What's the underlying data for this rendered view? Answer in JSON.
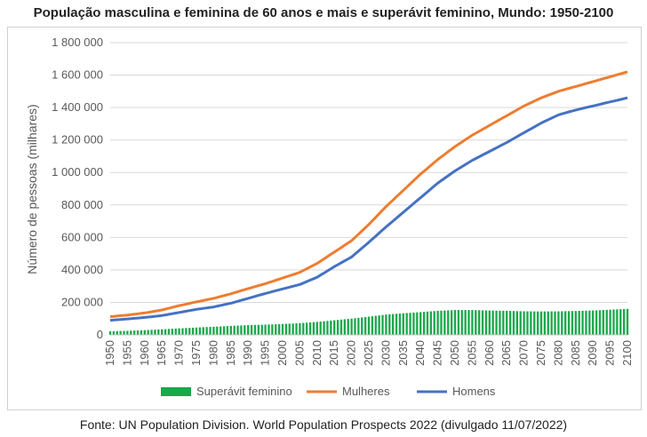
{
  "title": "População masculina e feminina de 60 anos e mais e superávit feminino, Mundo: 1950-2100",
  "source": "Fonte: UN Population Division. World Population Prospects 2022 (divulgado 11/07/2022)",
  "colors": {
    "superavit": "#1aa84b",
    "mulheres": "#ed7d31",
    "homens": "#4472c4",
    "grid": "#d9d9d9",
    "axis_text": "#595959"
  },
  "chart_data": {
    "type": "bar+line",
    "title": "População masculina e feminina de 60 anos e mais e superávit feminino, Mundo: 1950-2100",
    "xlabel": "",
    "ylabel": "Número de pessoas (milhares)",
    "ylim": [
      0,
      1800000
    ],
    "y_ticks": [
      0,
      200000,
      400000,
      600000,
      800000,
      1000000,
      1200000,
      1400000,
      1600000,
      1800000
    ],
    "y_tick_labels": [
      "0",
      "200 000",
      "400 000",
      "600 000",
      "800 000",
      "1 000 000",
      "1 200 000",
      "1 400 000",
      "1 600 000",
      "1 800 000"
    ],
    "x_ticks": [
      1950,
      1955,
      1960,
      1965,
      1970,
      1975,
      1980,
      1985,
      1990,
      1995,
      2000,
      2005,
      2010,
      2015,
      2020,
      2025,
      2030,
      2035,
      2040,
      2045,
      2050,
      2055,
      2060,
      2065,
      2070,
      2075,
      2080,
      2085,
      2090,
      2095,
      2100
    ],
    "x_tick_labels": [
      "1950",
      "1955",
      "1960",
      "1965",
      "1970",
      "1975",
      "1980",
      "1985",
      "1990",
      "1995",
      "2000",
      "2005",
      "2010",
      "2015",
      "2020",
      "2025",
      "2030",
      "2035",
      "2040",
      "2045",
      "2050",
      "2055",
      "2060",
      "2065",
      "2070",
      "2075",
      "2080",
      "2085",
      "2090",
      "2095",
      "2100"
    ],
    "grid": true,
    "legend_position": "bottom",
    "series": [
      {
        "name": "Superávit feminino",
        "kind": "bar",
        "color_key": "superavit",
        "x": [
          1950,
          1955,
          1960,
          1965,
          1970,
          1975,
          1980,
          1985,
          1990,
          1995,
          2000,
          2005,
          2010,
          2015,
          2020,
          2025,
          2030,
          2035,
          2040,
          2045,
          2050,
          2055,
          2060,
          2065,
          2070,
          2075,
          2080,
          2085,
          2090,
          2095,
          2100
        ],
        "values": [
          22000,
          25000,
          29000,
          34000,
          40000,
          45000,
          50000,
          55000,
          60000,
          63000,
          67000,
          72000,
          80000,
          90000,
          100000,
          112000,
          125000,
          133000,
          140000,
          148000,
          153000,
          153000,
          150000,
          148000,
          145000,
          144000,
          145000,
          147000,
          150000,
          155000,
          160000
        ]
      },
      {
        "name": "Mulheres",
        "kind": "line",
        "color_key": "mulheres",
        "x": [
          1950,
          1955,
          1960,
          1965,
          1970,
          1975,
          1980,
          1985,
          1990,
          1995,
          2000,
          2005,
          2010,
          2015,
          2020,
          2025,
          2030,
          2035,
          2040,
          2045,
          2050,
          2055,
          2060,
          2065,
          2070,
          2075,
          2080,
          2085,
          2090,
          2095,
          2100
        ],
        "values": [
          112000,
          122000,
          135000,
          153000,
          180000,
          203000,
          225000,
          253000,
          285000,
          315000,
          350000,
          385000,
          440000,
          510000,
          580000,
          680000,
          790000,
          890000,
          990000,
          1080000,
          1160000,
          1230000,
          1290000,
          1350000,
          1410000,
          1460000,
          1500000,
          1530000,
          1560000,
          1590000,
          1620000
        ]
      },
      {
        "name": "Homens",
        "kind": "line",
        "color_key": "homens",
        "x": [
          1950,
          1955,
          1960,
          1965,
          1970,
          1975,
          1980,
          1985,
          1990,
          1995,
          2000,
          2005,
          2010,
          2015,
          2020,
          2025,
          2030,
          2035,
          2040,
          2045,
          2050,
          2055,
          2060,
          2065,
          2070,
          2075,
          2080,
          2085,
          2090,
          2095,
          2100
        ],
        "values": [
          90000,
          98000,
          107000,
          119000,
          138000,
          157000,
          172000,
          195000,
          225000,
          255000,
          283000,
          310000,
          355000,
          420000,
          480000,
          570000,
          665000,
          755000,
          845000,
          935000,
          1010000,
          1075000,
          1130000,
          1185000,
          1245000,
          1305000,
          1355000,
          1385000,
          1410000,
          1435000,
          1460000
        ]
      }
    ]
  }
}
